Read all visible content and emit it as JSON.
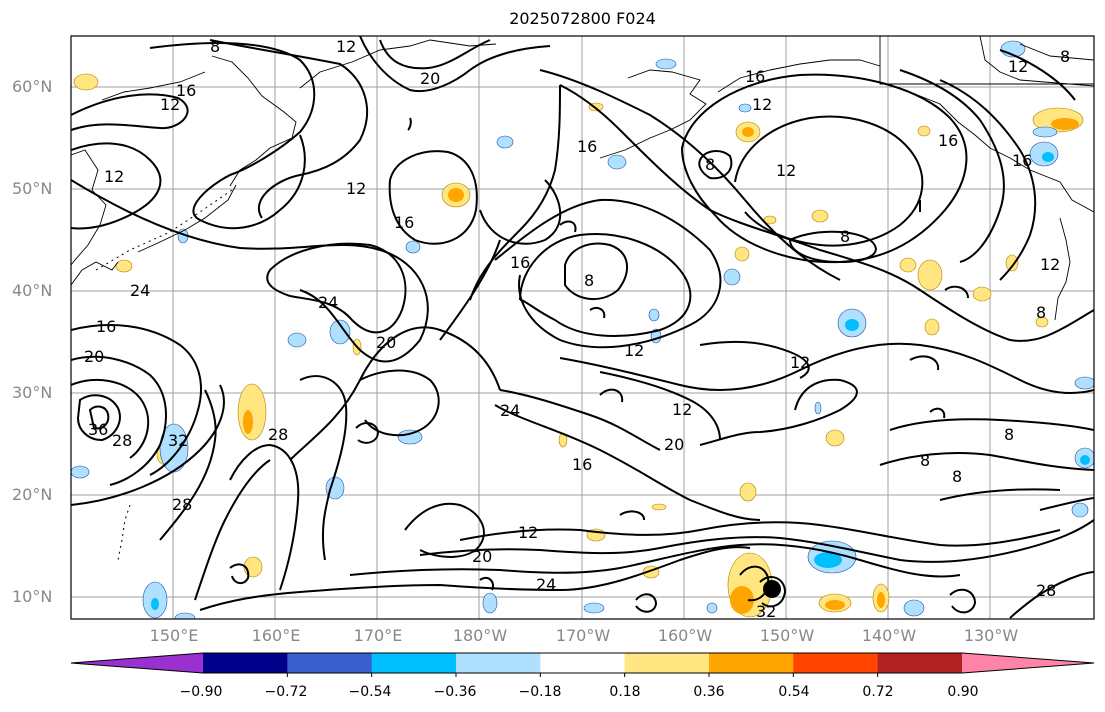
{
  "title": "2025072800 F024",
  "lat_labels": [
    {
      "text": "60°N"
    },
    {
      "text": "50°N"
    },
    {
      "text": "40°N"
    },
    {
      "text": "30°N"
    },
    {
      "text": "20°N"
    },
    {
      "text": "10°N"
    }
  ],
  "lon_labels": [
    {
      "text": "150°E"
    },
    {
      "text": "160°E"
    },
    {
      "text": "170°E"
    },
    {
      "text": "180°W"
    },
    {
      "text": "170°W"
    },
    {
      "text": "160°W"
    },
    {
      "text": "150°W"
    },
    {
      "text": "140°W"
    },
    {
      "text": "130°W"
    }
  ],
  "colorbar": {
    "ticks": [
      "−0.90",
      "−0.72",
      "−0.54",
      "−0.36",
      "−0.18",
      "0.18",
      "0.36",
      "0.54",
      "0.72",
      "0.90"
    ],
    "colors": [
      "#9b30d0",
      "#00008b",
      "#3a5fcd",
      "#00bfff",
      "#b0e0ff",
      "#ffffff",
      "#ffe680",
      "#ffa500",
      "#ff4500",
      "#b22222",
      "#ff85a8"
    ]
  },
  "contour_labels": [
    {
      "text": "8"
    },
    {
      "text": "12"
    },
    {
      "text": "16"
    },
    {
      "text": "20"
    },
    {
      "text": "12"
    },
    {
      "text": "12"
    },
    {
      "text": "12"
    },
    {
      "text": "16"
    },
    {
      "text": "16"
    },
    {
      "text": "24"
    },
    {
      "text": "16"
    },
    {
      "text": "20"
    },
    {
      "text": "36"
    },
    {
      "text": "28"
    },
    {
      "text": "32"
    },
    {
      "text": "28"
    },
    {
      "text": "28"
    },
    {
      "text": "24"
    },
    {
      "text": "20"
    },
    {
      "text": "16"
    },
    {
      "text": "8"
    },
    {
      "text": "12"
    },
    {
      "text": "24"
    },
    {
      "text": "12"
    },
    {
      "text": "20"
    },
    {
      "text": "16"
    },
    {
      "text": "12"
    },
    {
      "text": "20"
    },
    {
      "text": "24"
    },
    {
      "text": "16"
    },
    {
      "text": "12"
    },
    {
      "text": "8"
    },
    {
      "text": "8"
    },
    {
      "text": "12"
    },
    {
      "text": "16"
    },
    {
      "text": "16"
    },
    {
      "text": "12"
    },
    {
      "text": "8"
    },
    {
      "text": "12"
    },
    {
      "text": "8"
    },
    {
      "text": "8"
    },
    {
      "text": "8"
    },
    {
      "text": "12"
    },
    {
      "text": "28"
    },
    {
      "text": "32"
    },
    {
      "text": "8"
    }
  ]
}
